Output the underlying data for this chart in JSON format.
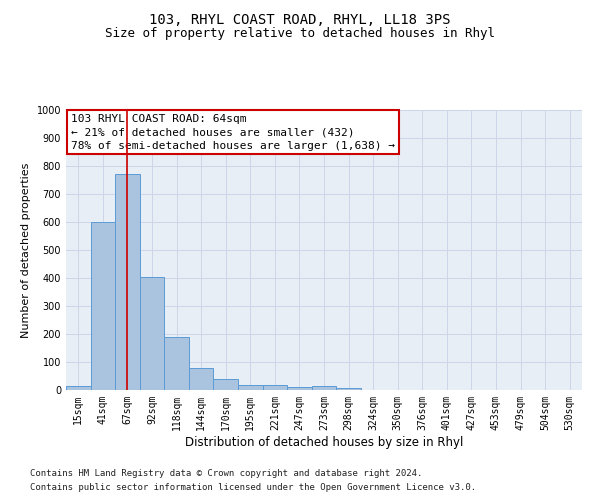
{
  "title1": "103, RHYL COAST ROAD, RHYL, LL18 3PS",
  "title2": "Size of property relative to detached houses in Rhyl",
  "xlabel": "Distribution of detached houses by size in Rhyl",
  "ylabel": "Number of detached properties",
  "categories": [
    "15sqm",
    "41sqm",
    "67sqm",
    "92sqm",
    "118sqm",
    "144sqm",
    "170sqm",
    "195sqm",
    "221sqm",
    "247sqm",
    "273sqm",
    "298sqm",
    "324sqm",
    "350sqm",
    "376sqm",
    "401sqm",
    "427sqm",
    "453sqm",
    "479sqm",
    "504sqm",
    "530sqm"
  ],
  "values": [
    15,
    600,
    770,
    405,
    190,
    78,
    40,
    18,
    18,
    10,
    13,
    8,
    0,
    0,
    0,
    0,
    0,
    0,
    0,
    0,
    0
  ],
  "bar_color": "#aac4e0",
  "bar_edge_color": "#5b9bd5",
  "vline_x_index": 2,
  "vline_color": "#cc0000",
  "annotation_line1": "103 RHYL COAST ROAD: 64sqm",
  "annotation_line2": "← 21% of detached houses are smaller (432)",
  "annotation_line3": "78% of semi-detached houses are larger (1,638) →",
  "annotation_box_color": "#cc0000",
  "ylim": [
    0,
    1000
  ],
  "yticks": [
    0,
    100,
    200,
    300,
    400,
    500,
    600,
    700,
    800,
    900,
    1000
  ],
  "grid_color": "#ccd6e8",
  "background_color": "#e8eef5",
  "footnote1": "Contains HM Land Registry data © Crown copyright and database right 2024.",
  "footnote2": "Contains public sector information licensed under the Open Government Licence v3.0.",
  "title1_fontsize": 10,
  "title2_fontsize": 9,
  "xlabel_fontsize": 8.5,
  "ylabel_fontsize": 8,
  "tick_fontsize": 7,
  "annotation_fontsize": 8,
  "footnote_fontsize": 6.5
}
